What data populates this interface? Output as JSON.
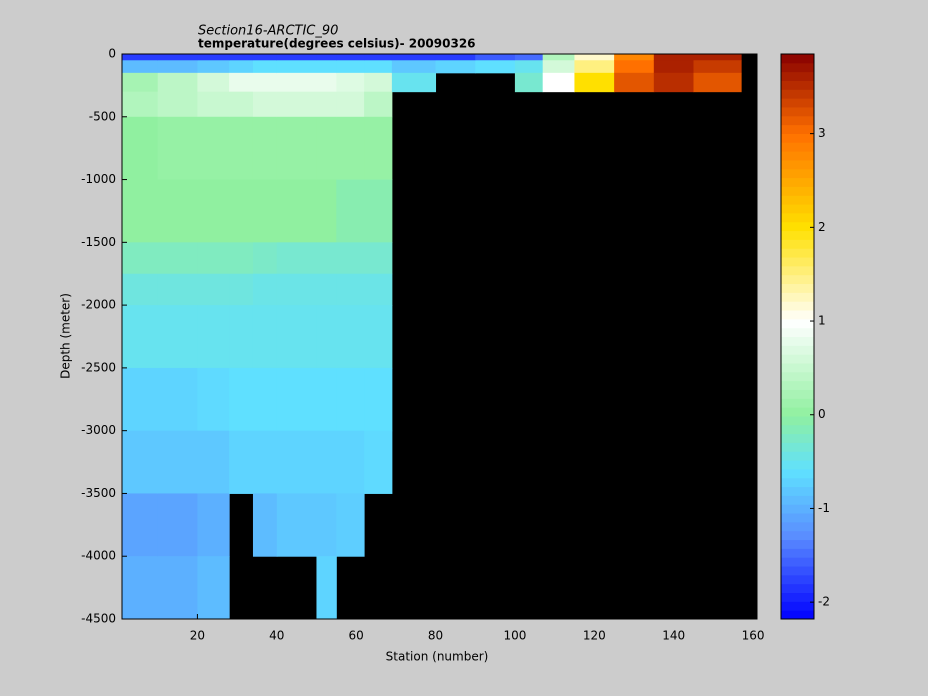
{
  "chart_data": {
    "type": "section",
    "title": "Section16-ARCTIC_90",
    "subtitle": "temperature(degrees  celsius)- 20090326",
    "x_label": "Station (number)",
    "y_label": "Depth (meter)",
    "xlim": [
      1,
      161
    ],
    "ylim": [
      -4500,
      0
    ],
    "xticks": [
      20,
      40,
      60,
      80,
      100,
      120,
      140,
      160
    ],
    "yticks": [
      0,
      -500,
      -1000,
      -1500,
      -2000,
      -2500,
      -3000,
      -3500,
      -4000,
      -4500
    ],
    "x_edges": [
      1,
      10,
      20,
      28,
      34,
      40,
      50,
      55,
      62,
      69,
      80,
      90,
      100,
      107,
      115,
      125,
      135,
      145,
      157,
      161
    ],
    "depth_edges": [
      0,
      -50,
      -150,
      -300,
      -500,
      -1000,
      -1500,
      -1750,
      -2000,
      -2500,
      -3000,
      -3500,
      -4000,
      -4500
    ],
    "values": [
      [
        -1.8,
        -0.9,
        0.2,
        0.3,
        0,
        0,
        -0.2,
        -0.4,
        -0.5,
        -0.7,
        -0.8,
        -1.1,
        -1.0
      ],
      [
        -1.8,
        -0.9,
        0.4,
        0.4,
        0.05,
        0,
        -0.2,
        -0.4,
        -0.5,
        -0.7,
        -0.8,
        -1.1,
        -1.0
      ],
      [
        -1.8,
        -0.8,
        0.6,
        0.5,
        0.05,
        0,
        -0.2,
        -0.4,
        -0.5,
        -0.65,
        -0.8,
        -1.0,
        -0.9
      ],
      [
        -1.8,
        -0.7,
        0.8,
        0.5,
        0.05,
        0,
        -0.2,
        -0.4,
        -0.5,
        -0.6,
        -0.7,
        null,
        null
      ],
      [
        -1.8,
        -0.6,
        0.8,
        0.6,
        0.05,
        0,
        -0.25,
        -0.45,
        -0.5,
        -0.6,
        -0.7,
        -0.9,
        null
      ],
      [
        -1.8,
        -0.6,
        0.8,
        0.6,
        0.05,
        0,
        -0.3,
        -0.45,
        -0.5,
        -0.6,
        -0.7,
        -0.8,
        null
      ],
      [
        -1.8,
        -0.6,
        0.8,
        0.6,
        0.05,
        0,
        -0.3,
        -0.45,
        -0.5,
        -0.6,
        -0.7,
        -0.8,
        -0.7
      ],
      [
        -1.8,
        -0.6,
        0.7,
        0.6,
        0.05,
        -0.1,
        -0.3,
        -0.45,
        -0.5,
        -0.6,
        -0.7,
        -0.75,
        null
      ],
      [
        -1.8,
        -0.6,
        0.6,
        0.4,
        0.05,
        -0.1,
        -0.3,
        -0.45,
        -0.5,
        -0.6,
        -0.65,
        null,
        null
      ],
      [
        -1.8,
        -0.8,
        -0.5,
        null,
        null,
        null,
        null,
        null,
        null,
        null,
        null,
        null,
        null
      ],
      [
        -1.8,
        -0.7,
        null,
        null,
        null,
        null,
        null,
        null,
        null,
        null,
        null,
        null,
        null
      ],
      [
        -1.6,
        -0.6,
        null,
        null,
        null,
        null,
        null,
        null,
        null,
        null,
        null,
        null,
        null
      ],
      [
        -1.5,
        -0.5,
        -0.3,
        null,
        null,
        null,
        null,
        null,
        null,
        null,
        null,
        null,
        null
      ],
      [
        0.3,
        0.6,
        1.0,
        null,
        null,
        null,
        null,
        null,
        null,
        null,
        null,
        null,
        null
      ],
      [
        1.2,
        1.5,
        2.0,
        null,
        null,
        null,
        null,
        null,
        null,
        null,
        null,
        null,
        null
      ],
      [
        2.8,
        3.0,
        3.2,
        null,
        null,
        null,
        null,
        null,
        null,
        null,
        null,
        null,
        null
      ],
      [
        3.6,
        3.6,
        3.5,
        null,
        null,
        null,
        null,
        null,
        null,
        null,
        null,
        null,
        null
      ],
      [
        3.6,
        3.4,
        3.2,
        null,
        null,
        null,
        null,
        null,
        null,
        null,
        null,
        null,
        null
      ],
      [
        null,
        null,
        null,
        null,
        null,
        null,
        null,
        null,
        null,
        null,
        null,
        null,
        null
      ]
    ],
    "clim": [
      -2.18,
      3.85
    ],
    "cticks": [
      -2,
      -1,
      0,
      1,
      2,
      3
    ],
    "colormap": [
      {
        "value": -2.18,
        "color": "#0000ff"
      },
      {
        "value": -1.3,
        "color": "#5a8cff"
      },
      {
        "value": -0.6,
        "color": "#5fe0ff"
      },
      {
        "value": 0,
        "color": "#90f0a0"
      },
      {
        "value": 1,
        "color": "#ffffff"
      },
      {
        "value": 2,
        "color": "#ffe000"
      },
      {
        "value": 3,
        "color": "#ff7000"
      },
      {
        "value": 3.85,
        "color": "#880000"
      }
    ],
    "background": "#000000"
  }
}
